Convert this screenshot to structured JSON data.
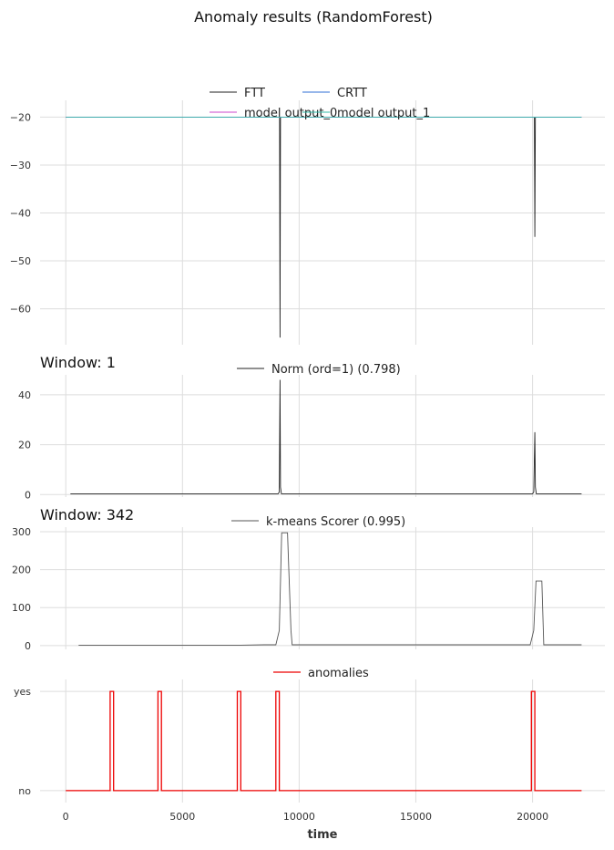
{
  "figure": {
    "title": "Anomaly results (RandomForest)",
    "xlabel": "time"
  },
  "chart_data": [
    {
      "type": "line",
      "title": "",
      "xlabel": "",
      "ylabel": "",
      "xlim": [
        -1100,
        23100
      ],
      "ylim": [
        -67.5,
        -16.5
      ],
      "grid": true,
      "legend": "top-center",
      "xticks": [
        0,
        5000,
        10000,
        15000,
        20000
      ],
      "yticks": [
        -60,
        -50,
        -40,
        -30,
        -20
      ],
      "ytick_labels": [
        "−60",
        "−50",
        "−40",
        "−30",
        "−20"
      ],
      "series": [
        {
          "name": "FTT",
          "color": "#222222",
          "x": [
            0,
            9100,
            9160,
            9180,
            9200,
            9240,
            20000,
            20080,
            20100,
            20120,
            20160,
            22100
          ],
          "y": [
            -20,
            -20,
            -20,
            -66,
            -20,
            -20,
            -20,
            -20,
            -45,
            -20,
            -20,
            -20
          ]
        },
        {
          "name": "CRTT",
          "color": "#2f6fd6",
          "x": [
            0,
            22100
          ],
          "y": [
            -20,
            -20
          ]
        },
        {
          "name": "model output_0",
          "color": "#cc44cc",
          "x": [
            0,
            22100
          ],
          "y": [
            -20,
            -20
          ]
        },
        {
          "name": "model output_1",
          "color": "#33bbaa",
          "x": [
            0,
            22100
          ],
          "y": [
            -20,
            -20
          ]
        }
      ]
    },
    {
      "type": "line",
      "title": "Window: 1",
      "xlabel": "",
      "ylabel": "",
      "xlim": [
        -1100,
        23100
      ],
      "ylim": [
        -1,
        48
      ],
      "grid": true,
      "legend": "top-center",
      "xticks": [
        0,
        5000,
        10000,
        15000,
        20000
      ],
      "yticks": [
        0,
        20,
        40
      ],
      "ytick_labels": [
        "0",
        "20",
        "40"
      ],
      "series": [
        {
          "name": "Norm (ord=1) (0.798)",
          "color": "#222222",
          "x": [
            200,
            9100,
            9150,
            9180,
            9200,
            9240,
            20000,
            20050,
            20100,
            20120,
            20160,
            22100
          ],
          "y": [
            0.3,
            0.3,
            1,
            46,
            3,
            0.3,
            0.3,
            1,
            25,
            3,
            0.3,
            0.3
          ]
        }
      ]
    },
    {
      "type": "line",
      "title": "Window: 342",
      "xlabel": "",
      "ylabel": "",
      "xlim": [
        -1100,
        23100
      ],
      "ylim": [
        -10,
        312
      ],
      "grid": true,
      "legend": "top-center",
      "xticks": [
        0,
        5000,
        10000,
        15000,
        20000
      ],
      "yticks": [
        0,
        100,
        200,
        300
      ],
      "ytick_labels": [
        "0",
        "100",
        "200",
        "300"
      ],
      "series": [
        {
          "name": "k-means Scorer (0.995)",
          "color": "#555555",
          "x": [
            550,
            7500,
            8500,
            9000,
            9150,
            9250,
            9500,
            9650,
            9700,
            19900,
            20050,
            20150,
            20400,
            20480,
            22100
          ],
          "y": [
            1,
            1,
            2,
            2,
            40,
            297,
            297,
            40,
            2,
            2,
            40,
            170,
            170,
            2,
            2
          ]
        }
      ]
    },
    {
      "type": "line",
      "title": "",
      "xlabel": "time",
      "ylabel": "",
      "xlim": [
        -1100,
        23100
      ],
      "ylim": [
        -0.12,
        1.12
      ],
      "grid": true,
      "legend": "top-center",
      "xticks": [
        0,
        5000,
        10000,
        15000,
        20000
      ],
      "xtick_labels": [
        "0",
        "5000",
        "10000",
        "15000",
        "20000"
      ],
      "yticks": [
        0,
        1
      ],
      "ytick_labels": [
        "no",
        "yes"
      ],
      "series": [
        {
          "name": "anomalies",
          "color": "#ee0000",
          "x": [
            0,
            1900,
            1900,
            2050,
            2050,
            3950,
            3950,
            4100,
            4100,
            7350,
            7350,
            7500,
            7500,
            9000,
            9000,
            9150,
            9150,
            19950,
            19950,
            20100,
            20100,
            22100
          ],
          "y": [
            0,
            0,
            1,
            1,
            0,
            0,
            1,
            1,
            0,
            0,
            1,
            1,
            0,
            0,
            1,
            1,
            0,
            0,
            1,
            1,
            0,
            0
          ]
        }
      ]
    }
  ]
}
